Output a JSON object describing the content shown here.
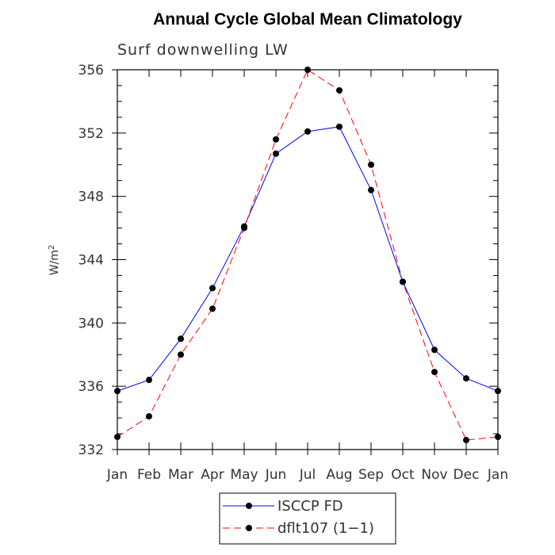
{
  "chart_data": {
    "type": "line",
    "title": "Annual Cycle Global Mean Climatology",
    "subtitle": "Surf downwelling LW",
    "ylabel": "W/m",
    "ylabel_superscript": "2",
    "xlabel": "",
    "categories": [
      "Jan",
      "Feb",
      "Mar",
      "Apr",
      "May",
      "Jun",
      "Jul",
      "Aug",
      "Sep",
      "Oct",
      "Nov",
      "Dec",
      "Jan"
    ],
    "ylim": [
      332,
      356
    ],
    "yticks": [
      "332",
      "336",
      "340",
      "344",
      "348",
      "352",
      "356"
    ],
    "grid": false,
    "legend_position": "bottom-center",
    "series": [
      {
        "name": "ISCCP FD",
        "color": "#0000ff",
        "dash": "solid",
        "values": [
          335.7,
          336.4,
          339.0,
          342.2,
          346.1,
          350.7,
          352.1,
          352.4,
          348.4,
          342.6,
          338.3,
          336.5,
          335.7
        ]
      },
      {
        "name": "dflt107 (1−1)",
        "color": "#ff0000",
        "dash": "dashed",
        "values": [
          332.8,
          334.1,
          338.0,
          340.9,
          346.0,
          351.6,
          356.0,
          354.7,
          350.0,
          342.6,
          336.9,
          332.6,
          332.8
        ]
      }
    ]
  }
}
